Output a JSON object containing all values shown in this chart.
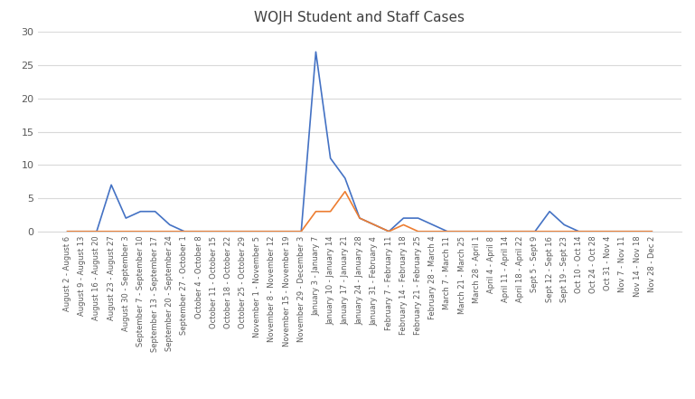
{
  "title": "WOJH Student and Staff Cases",
  "categories": [
    "August 2 - August 6",
    "August 9 - August 13",
    "August 16 - August 20",
    "August 23 - August 27",
    "August 30 - September 3",
    "September 7 - September 10",
    "September 13 - September 17",
    "September 20 - September 24",
    "September 27 - October 1",
    "October 4 - October 8",
    "October 11 - October 15",
    "October 18 - October 22",
    "October 25 - October 29",
    "November 1 - November 5",
    "November 8 - November 12",
    "November 15 - November 19",
    "November 29 - December 3",
    "January 3 - January 7",
    "January 10 - January 14",
    "January 17 - January 21",
    "January 24 - January 28",
    "January 31 - February 4",
    "February 7 - February 11",
    "February 14 - February 18",
    "February 21 - February 25",
    "February 28 - March 4",
    "March 7 - March 11",
    "March 21 - March 25",
    "March 28 - April 1",
    "April 4 - April 8",
    "April 11 - April 14",
    "April 18 - April 22",
    "Sept 5 - Sept 9",
    "Sept 12 - Sept 16",
    "Sept 19 - Sept 23",
    "Oct 10 - Oct 14",
    "Oct 24 - Oct 28",
    "Oct 31 - Nov 4",
    "Nov 7 - Nov 11",
    "Nov 14 - Nov 18",
    "Nov 28 - Dec 2"
  ],
  "blue_values": [
    0,
    0,
    0,
    7,
    2,
    3,
    3,
    1,
    0,
    0,
    0,
    0,
    0,
    0,
    0,
    0,
    0,
    27,
    11,
    8,
    2,
    1,
    0,
    2,
    2,
    1,
    0,
    0,
    0,
    0,
    0,
    0,
    0,
    3,
    1,
    0,
    0,
    0,
    0,
    0,
    0
  ],
  "orange_values": [
    0,
    0,
    0,
    0,
    0,
    0,
    0,
    0,
    0,
    0,
    0,
    0,
    0,
    0,
    0,
    0,
    0,
    3,
    3,
    6,
    2,
    1,
    0,
    1,
    0,
    0,
    0,
    0,
    0,
    0,
    0,
    0,
    0,
    0,
    0,
    0,
    0,
    0,
    0,
    0,
    0
  ],
  "blue_color": "#4472C4",
  "orange_color": "#ED7D31",
  "ylim": [
    0,
    30
  ],
  "yticks": [
    0,
    5,
    10,
    15,
    20,
    25,
    30
  ],
  "title_fontsize": 11,
  "tick_fontsize": 6.0,
  "ytick_fontsize": 8.0,
  "grid_color": "#D9D9D9",
  "spine_color": "#D9D9D9",
  "title_color": "#404040",
  "tick_color": "#595959"
}
